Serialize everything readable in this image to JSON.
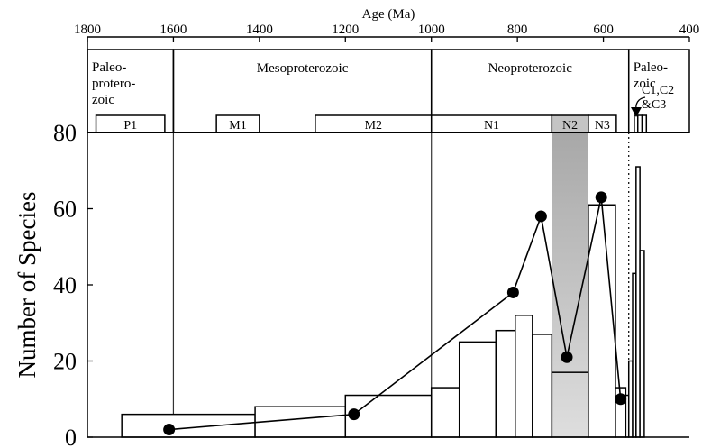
{
  "chart_data": {
    "type": "bar",
    "top_axis_title": "Age (Ma)",
    "top_axis_ticks": [
      1800,
      1600,
      1400,
      1200,
      1000,
      800,
      600,
      400
    ],
    "x_range": [
      1800,
      400
    ],
    "x_reversed": true,
    "ylabel": "Number of Species",
    "ylim": [
      0,
      80
    ],
    "y_ticks": [
      0,
      20,
      40,
      60,
      80
    ],
    "eras": [
      {
        "label": "Paleo-\nprotero-\nzoic",
        "from": 1800,
        "to": 1600
      },
      {
        "label": "Mesoproterozoic",
        "from": 1600,
        "to": 1000
      },
      {
        "label": "Neoproterozoic",
        "from": 1000,
        "to": 541
      },
      {
        "label": "Paleo-\nzoic",
        "from": 541,
        "to": 400
      }
    ],
    "intervals": [
      {
        "label": "P1",
        "from": 1780,
        "to": 1620
      },
      {
        "label": "M1",
        "from": 1500,
        "to": 1400
      },
      {
        "label": "M2",
        "from": 1270,
        "to": 1000
      },
      {
        "label": "N1",
        "from": 1000,
        "to": 720
      },
      {
        "label": "N2",
        "from": 720,
        "to": 635
      },
      {
        "label": "N3",
        "from": 635,
        "to": 570
      },
      {
        "label": "C1",
        "from": 528,
        "to": 520
      },
      {
        "label": "C2",
        "from": 520,
        "to": 510
      },
      {
        "label": "C3",
        "from": 510,
        "to": 500
      }
    ],
    "cambrian_label": "C1,C2\n&C3",
    "bars": [
      {
        "from": 1720,
        "to": 1410,
        "value": 6
      },
      {
        "from": 1410,
        "to": 1200,
        "value": 8
      },
      {
        "from": 1200,
        "to": 1000,
        "value": 11
      },
      {
        "from": 1000,
        "to": 935,
        "value": 13
      },
      {
        "from": 935,
        "to": 850,
        "value": 25
      },
      {
        "from": 850,
        "to": 805,
        "value": 28
      },
      {
        "from": 805,
        "to": 765,
        "value": 32
      },
      {
        "from": 765,
        "to": 720,
        "value": 27
      },
      {
        "from": 720,
        "to": 635,
        "value": 17
      },
      {
        "from": 635,
        "to": 572,
        "value": 61
      },
      {
        "from": 572,
        "to": 548,
        "value": 13
      },
      {
        "from": 548,
        "to": 541,
        "value": 11
      },
      {
        "from": 541,
        "to": 532,
        "value": 20
      },
      {
        "from": 532,
        "to": 524,
        "value": 43
      },
      {
        "from": 524,
        "to": 515,
        "value": 71
      },
      {
        "from": 515,
        "to": 505,
        "value": 49
      }
    ],
    "series": [
      {
        "type": "line",
        "x": [
          1610,
          1180,
          810,
          745,
          685,
          605,
          560
        ],
        "values": [
          2,
          6,
          38,
          58,
          21,
          63,
          10
        ]
      }
    ],
    "shaded_region": {
      "from": 720,
      "to": 635
    },
    "vertical_lines": [
      1600,
      1000
    ],
    "dotted_line": 541,
    "colors": {
      "shade_top": "#a8a8a8",
      "shade_bottom": "#dedede",
      "bar_fill": "#ffffff",
      "line": "#000000"
    }
  }
}
